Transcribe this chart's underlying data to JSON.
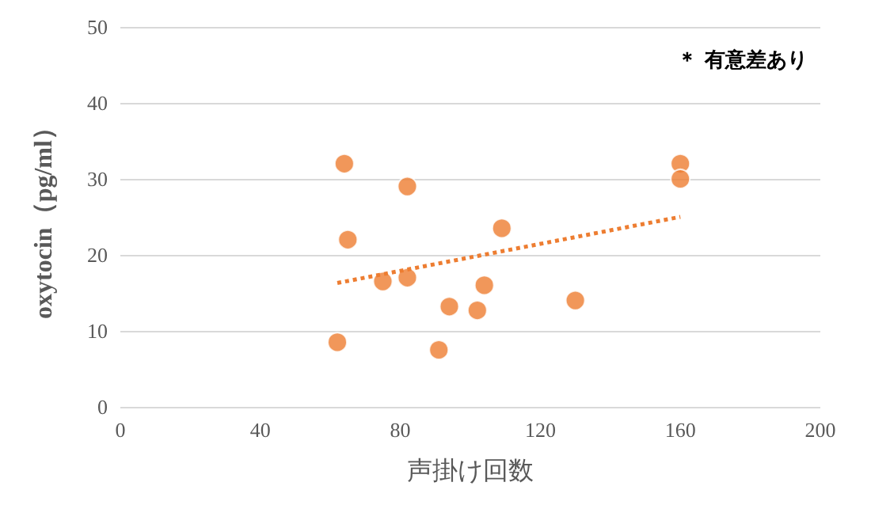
{
  "chart_data": {
    "type": "scatter",
    "xlabel": "声掛け回数",
    "ylabel": "oxytocin（pg/ml）",
    "annotations": [
      "＊ 有意差あり"
    ],
    "series": [
      {
        "color": "#ed7d31",
        "marker": "circle",
        "x": [
          62,
          64,
          65,
          75,
          82,
          82,
          91,
          94,
          102,
          104,
          109,
          130,
          160,
          160
        ],
        "values": [
          8.5,
          32,
          22,
          16.5,
          29,
          17,
          7.5,
          13.2,
          12.7,
          16,
          23.5,
          14,
          32,
          30
        ]
      },
      {
        "type": "line",
        "color": "#ed7d31",
        "marker": "none",
        "line_style": "dotted",
        "x": [
          62,
          160
        ],
        "values": [
          16.3,
          25
        ]
      }
    ],
    "xlim": [
      0,
      200
    ],
    "xticks": [
      0,
      40,
      80,
      120,
      160,
      200
    ],
    "ylim": [
      0,
      50
    ],
    "yticks": [
      0,
      10,
      20,
      30,
      40,
      50
    ],
    "grid": "y"
  }
}
